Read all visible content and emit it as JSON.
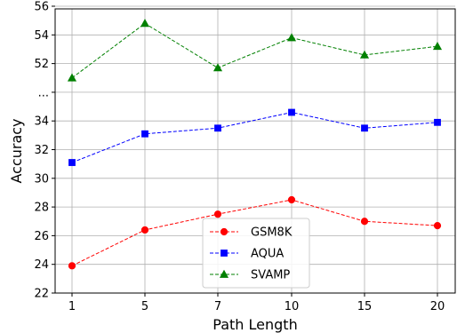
{
  "chart_data": {
    "type": "line",
    "title": "",
    "xlabel": "Path Length",
    "ylabel": "Accuracy",
    "x": [
      1,
      5,
      7,
      10,
      15,
      20
    ],
    "x_tick_labels": [
      "1",
      "5",
      "7",
      "10",
      "15",
      "20"
    ],
    "axis_break": true,
    "lower_ylim": [
      22,
      36
    ],
    "upper_ylim": [
      50,
      56
    ],
    "y_tick_labels": [
      "22",
      "24",
      "26",
      "28",
      "30",
      "32",
      "34",
      "...",
      "52",
      "54",
      "56"
    ],
    "grid": true,
    "legend_position": "lower-center",
    "series": [
      {
        "name": "GSM8K",
        "color": "#ff0000",
        "marker": "circle",
        "linestyle": "dashed",
        "values": [
          23.9,
          26.4,
          27.5,
          28.5,
          27.0,
          26.7
        ]
      },
      {
        "name": "AQUA",
        "color": "#0000ff",
        "marker": "square",
        "linestyle": "dashed",
        "values": [
          31.1,
          33.1,
          33.5,
          34.6,
          33.5,
          33.9
        ]
      },
      {
        "name": "SVAMP",
        "color": "#008000",
        "marker": "triangle",
        "linestyle": "dashed",
        "values": [
          51.0,
          54.8,
          51.7,
          53.8,
          52.6,
          53.2
        ]
      }
    ]
  }
}
